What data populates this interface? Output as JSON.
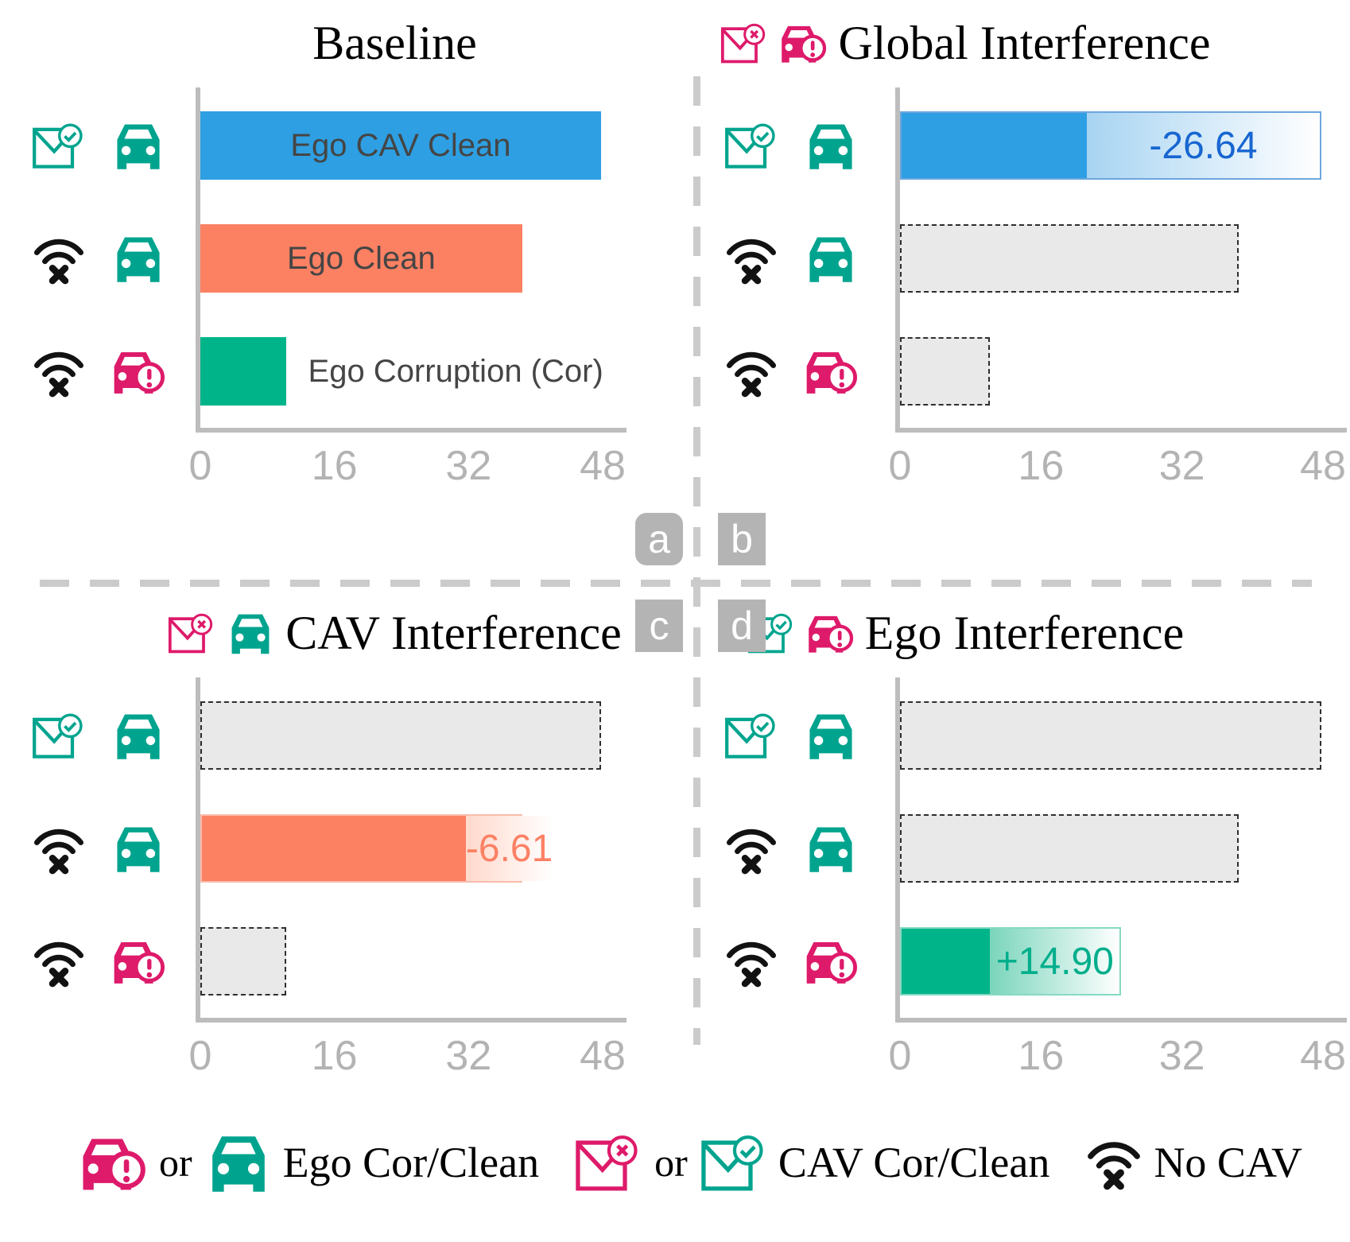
{
  "figure": {
    "axis_ticks": [
      "0",
      "16",
      "32",
      "48"
    ],
    "axis_max": 48
  },
  "colors": {
    "blue": "#2E9FE2",
    "blue_text": "#1766D1",
    "blue_fade": "#A8D4F2",
    "blue_border": "#6CA6DE",
    "orange": "#FC8163",
    "orange_text": "#FB8165",
    "orange_fade": "#FFD9CC",
    "orange_border": "#F9BCAB",
    "green": "#00B48A",
    "green_text": "#00AE8C",
    "green_fade": "#7AD5BB",
    "green_border": "#86D9C3",
    "teal_icon": "#00A48E",
    "pink_icon": "#DE1A6A",
    "ghost_fill": "#E9E9E9",
    "axis": "#BDBDBD",
    "tag_bg": "#B4B4B4"
  },
  "panel_tags": [
    "a",
    "b",
    "c",
    "d"
  ],
  "panels": [
    {
      "tag": "a",
      "title": "Baseline",
      "title_icons": [],
      "rows": [
        {
          "icons": [
            "envelope-check",
            "car-clean"
          ],
          "bar": {
            "kind": "solid",
            "color_key": "blue",
            "value": 47.8,
            "label": "Ego CAV Clean"
          }
        },
        {
          "icons": [
            "wifi-off",
            "car-clean"
          ],
          "bar": {
            "kind": "solid",
            "color_key": "orange",
            "value": 38.4,
            "label": "Ego Clean"
          }
        },
        {
          "icons": [
            "wifi-off",
            "car-warning"
          ],
          "bar": {
            "kind": "solid",
            "color_key": "green",
            "value": 10.2,
            "label": "Ego Corruption (Cor)"
          }
        }
      ]
    },
    {
      "tag": "b",
      "title": "Global Interference",
      "title_icons": [
        "envelope-x",
        "car-warning"
      ],
      "rows": [
        {
          "icons": [
            "envelope-check",
            "car-clean"
          ],
          "bar": {
            "kind": "delta",
            "color_key": "blue",
            "solid": 21.2,
            "total": 47.8,
            "delta_label": "-26.64"
          }
        },
        {
          "icons": [
            "wifi-off",
            "car-clean"
          ],
          "bar": {
            "kind": "ghost",
            "value": 38.4
          }
        },
        {
          "icons": [
            "wifi-off",
            "car-warning"
          ],
          "bar": {
            "kind": "ghost",
            "value": 10.2
          }
        }
      ]
    },
    {
      "tag": "c",
      "title": "CAV Interference",
      "title_icons": [
        "envelope-x",
        "car-clean"
      ],
      "rows": [
        {
          "icons": [
            "envelope-check",
            "car-clean"
          ],
          "bar": {
            "kind": "ghost",
            "value": 47.8
          }
        },
        {
          "icons": [
            "wifi-off",
            "car-clean"
          ],
          "bar": {
            "kind": "delta",
            "color_key": "orange",
            "solid": 31.8,
            "total": 38.4,
            "delta_label": "-6.61"
          }
        },
        {
          "icons": [
            "wifi-off",
            "car-warning"
          ],
          "bar": {
            "kind": "ghost",
            "value": 10.2
          }
        }
      ]
    },
    {
      "tag": "d",
      "title": "Ego Interference",
      "title_icons": [
        "envelope-check",
        "car-warning"
      ],
      "rows": [
        {
          "icons": [
            "envelope-check",
            "car-clean"
          ],
          "bar": {
            "kind": "ghost",
            "value": 47.8
          }
        },
        {
          "icons": [
            "wifi-off",
            "car-clean"
          ],
          "bar": {
            "kind": "ghost",
            "value": 38.4
          }
        },
        {
          "icons": [
            "wifi-off",
            "car-warning"
          ],
          "bar": {
            "kind": "delta",
            "color_key": "green",
            "solid": 10.2,
            "total": 25.1,
            "delta_label": "+14.90"
          }
        }
      ]
    }
  ],
  "legend": {
    "items": [
      {
        "icons": [
          "car-warning",
          "car-clean"
        ],
        "separator": "or",
        "label": "Ego Cor/Clean"
      },
      {
        "icons": [
          "envelope-x",
          "envelope-check"
        ],
        "separator": "or",
        "label": "CAV Cor/Clean"
      },
      {
        "icons": [
          "wifi-off"
        ],
        "separator": "",
        "label": "No CAV"
      }
    ]
  },
  "chart_data": [
    {
      "type": "bar",
      "orientation": "horizontal",
      "panel": "a",
      "title": "Baseline",
      "categories": [
        "CAV Clean + Ego Clean",
        "No CAV + Ego Clean",
        "No CAV + Ego Corruption"
      ],
      "values": [
        47.8,
        38.4,
        10.2
      ],
      "bar_labels": [
        "Ego CAV Clean",
        "Ego Clean",
        "Ego Corruption (Cor)"
      ],
      "bar_colors": [
        "#2E9FE2",
        "#FC8163",
        "#00B48A"
      ],
      "xlim": [
        0,
        48
      ],
      "xticks": [
        0,
        16,
        32,
        48
      ],
      "grid": false
    },
    {
      "type": "bar",
      "orientation": "horizontal",
      "panel": "b",
      "title": "Global Interference",
      "categories": [
        "CAV Clean + Ego Clean",
        "No CAV + Ego Clean",
        "No CAV + Ego Corruption"
      ],
      "series": [
        {
          "name": "after interference",
          "values": [
            21.2,
            null,
            null
          ]
        },
        {
          "name": "baseline reference (ghost)",
          "values": [
            47.8,
            38.4,
            10.2
          ]
        }
      ],
      "annotations": [
        {
          "row": 0,
          "text": "-26.64"
        }
      ],
      "xlim": [
        0,
        48
      ],
      "xticks": [
        0,
        16,
        32,
        48
      ],
      "grid": false
    },
    {
      "type": "bar",
      "orientation": "horizontal",
      "panel": "c",
      "title": "CAV Interference",
      "categories": [
        "CAV Clean + Ego Clean",
        "No CAV + Ego Clean",
        "No CAV + Ego Corruption"
      ],
      "series": [
        {
          "name": "after interference",
          "values": [
            null,
            31.8,
            null
          ]
        },
        {
          "name": "baseline reference (ghost)",
          "values": [
            47.8,
            38.4,
            10.2
          ]
        }
      ],
      "annotations": [
        {
          "row": 1,
          "text": "-6.61"
        }
      ],
      "xlim": [
        0,
        48
      ],
      "xticks": [
        0,
        16,
        32,
        48
      ],
      "grid": false
    },
    {
      "type": "bar",
      "orientation": "horizontal",
      "panel": "d",
      "title": "Ego Interference",
      "categories": [
        "CAV Clean + Ego Clean",
        "No CAV + Ego Clean",
        "No CAV + Ego Corruption"
      ],
      "series": [
        {
          "name": "after interference",
          "values": [
            null,
            null,
            25.1
          ]
        },
        {
          "name": "baseline reference (ghost)",
          "values": [
            47.8,
            38.4,
            10.2
          ]
        }
      ],
      "annotations": [
        {
          "row": 2,
          "text": "+14.90"
        }
      ],
      "xlim": [
        0,
        48
      ],
      "xticks": [
        0,
        16,
        32,
        48
      ],
      "grid": false
    }
  ]
}
